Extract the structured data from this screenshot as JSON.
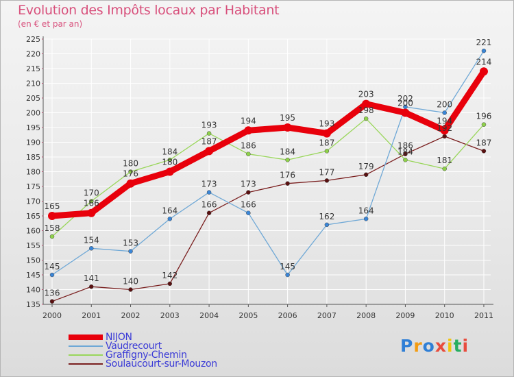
{
  "title": "Evolution des Impôts locaux par Habitant",
  "subtitle": "(en € et par an)",
  "brand": {
    "text": "Proxiti",
    "letters": [
      "P",
      "r",
      "o",
      "x",
      "i",
      "t",
      "i"
    ],
    "letter_colors": [
      "#2f7fd6",
      "#f39c12",
      "#2f7fd6",
      "#e84c3d",
      "#f1c40f",
      "#27ae60",
      "#e84c3d"
    ]
  },
  "chart_data": {
    "type": "line",
    "title": "Evolution des Impôts locaux par Habitant",
    "subtitle": "(en € et par an)",
    "xlabel": "",
    "ylabel": "",
    "categories": [
      "2000",
      "2001",
      "2002",
      "2003",
      "2004",
      "2005",
      "2006",
      "2007",
      "2008",
      "2009",
      "2010",
      "2011"
    ],
    "ylim": [
      135,
      225
    ],
    "ytick_step": 5,
    "grid": true,
    "legend_position": "bottom-left",
    "series": [
      {
        "name": "NIJON",
        "color": "#e8000b",
        "values": [
          165,
          166,
          176,
          180,
          187,
          194,
          195,
          193,
          203,
          200,
          194,
          214
        ],
        "label_color": "#333333"
      },
      {
        "name": "Vaudrecourt",
        "color": "#6fa8d6",
        "values": [
          145,
          154,
          153,
          164,
          173,
          166,
          145,
          162,
          164,
          202,
          200,
          221
        ],
        "label_color": "#333333"
      },
      {
        "name": "Graffigny-Chemin",
        "color": "#99d65a",
        "values": [
          158,
          170,
          180,
          184,
          193,
          186,
          184,
          187,
          198,
          184,
          181,
          196
        ],
        "label_color": "#333333"
      },
      {
        "name": "Soulaucourt-sur-Mouzon",
        "color": "#7a1f1f",
        "values": [
          136,
          141,
          140,
          142,
          166,
          173,
          176,
          177,
          179,
          186,
          192,
          187
        ],
        "label_color": "#333333"
      }
    ]
  }
}
